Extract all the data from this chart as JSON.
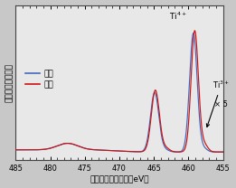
{
  "xlabel": "電子のエネルギー（eV）",
  "ylabel": "強度（電子の数）",
  "xlim": [
    485,
    455
  ],
  "x_ticks": [
    485,
    480,
    475,
    470,
    465,
    460,
    455
  ],
  "blue_color": "#4466bb",
  "red_color": "#cc1111",
  "plot_bg": "#e8e8e8",
  "fig_bg": "#c8c8c8",
  "legend_blue": "内部",
  "legend_red": "表面",
  "annotation_ti4": "Ti$^{4+}$",
  "annotation_ti3": "Ti$^{3+}$",
  "annotation_x5": "× 5"
}
